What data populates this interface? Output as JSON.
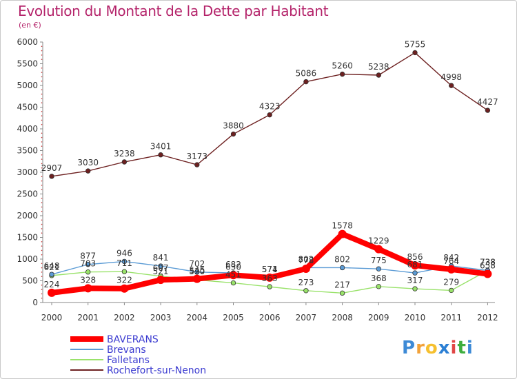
{
  "chart_data": {
    "type": "line",
    "title": "Evolution du Montant de la Dette par Habitant",
    "subtitle": "(en €)",
    "x": [
      "2000",
      "2001",
      "2002",
      "2003",
      "2004",
      "2005",
      "2006",
      "2007",
      "2008",
      "2009",
      "2010",
      "2011",
      "2012"
    ],
    "ylim": [
      0,
      6000
    ],
    "yticks": [
      0,
      500,
      1000,
      1500,
      2000,
      2500,
      3000,
      3500,
      4000,
      4500,
      5000,
      5500,
      6000
    ],
    "grid": false,
    "legend_position": "bottom-left",
    "series": [
      {
        "name": "BAVERANS",
        "color": "#ff0000",
        "values": [
          224,
          328,
          322,
          521,
          545,
          630,
          574,
          778,
          1578,
          1229,
          856,
          764,
          658
        ]
      },
      {
        "name": "Brevans",
        "color": "#5b9bd5",
        "values": [
          648,
          877,
          946,
          841,
          702,
          682,
          571,
          802,
          802,
          775,
          681,
          842,
          738
        ]
      },
      {
        "name": "Falletans",
        "color": "#99e26a",
        "values": [
          621,
          703,
          711,
          607,
          520,
          451,
          363,
          273,
          217,
          368,
          317,
          279,
          738
        ]
      },
      {
        "name": "Rochefort-sur-Nenon",
        "color": "#6d2020",
        "values": [
          2907,
          3030,
          3238,
          3401,
          3173,
          3880,
          4323,
          5086,
          5260,
          5238,
          5755,
          4998,
          4427
        ]
      }
    ]
  },
  "brand": {
    "letters": [
      "P",
      "r",
      "o",
      "x",
      "i",
      "t",
      "i"
    ],
    "colors": [
      "#3d8ad6",
      "#f2a23a",
      "#f6c02f",
      "#2b7fd4",
      "#e04646",
      "#3fae3f",
      "#3d8ad6"
    ]
  }
}
